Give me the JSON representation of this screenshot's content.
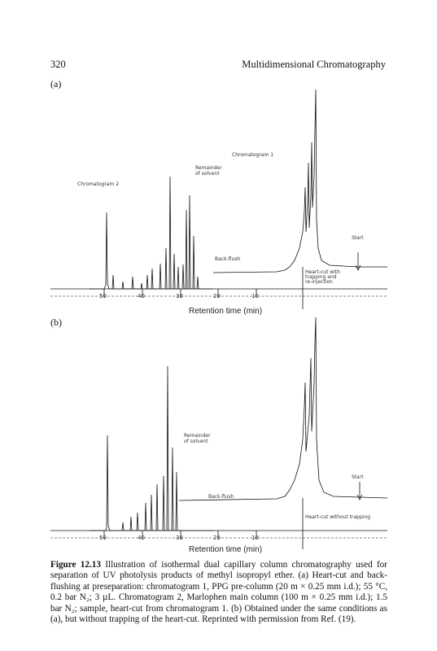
{
  "header": {
    "page_number": "320",
    "running_title": "Multidimensional Chromatography"
  },
  "panel_a": {
    "label": "(a)",
    "annotations": {
      "chromatogram_1": "Chromatogram 1",
      "chromatogram_2": "Chromatogram 2",
      "remainder_line1": "Remainder",
      "remainder_line2": "of solvent",
      "back_flush": "Back-flush",
      "start": "Start",
      "heart_cut_line1": "Heart-cut with",
      "heart_cut_line2": "trapping and",
      "heart_cut_line3": "re-injection"
    },
    "axis": {
      "ticks": [
        "50",
        "40",
        "30",
        "20",
        "10"
      ],
      "label": "Retention time (min)"
    }
  },
  "panel_b": {
    "label": "(b)",
    "annotations": {
      "remainder_line1": "Remainder",
      "remainder_line2": "of solvent",
      "back_flush": "Back-flush",
      "start": "Start",
      "heart_cut": "Heart-cut without trapping"
    },
    "axis": {
      "ticks": [
        "50",
        "40",
        "30",
        "20",
        "10"
      ],
      "label": "Retention time (min)"
    }
  },
  "caption": {
    "figure_label": "Figure 12.13",
    "text": "Illustration of isothermal dual capillary column chromatography used for separation of UV photolysis products of methyl isopropyl ether. (a) Heart-cut and back-flushing at preseparation: chromatogram 1, PPG pre-column (20 m × 0.25 mm i.d.); 55 °C, 0.2 bar N₂; 3 µL. Chromatogram 2, Marlophen main column (100 m × 0.25 mm i.d.); 1.5 bar N₂; sample, heart-cut from chromatogram 1. (b) Obtained under the same conditions as (a), but without trapping of the heart-cut. Reprinted with permission from Ref. (19)."
  }
}
